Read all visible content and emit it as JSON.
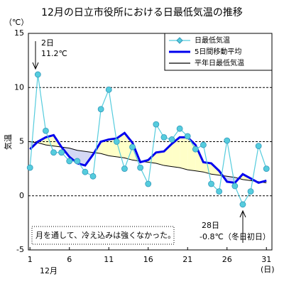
{
  "chart_data": {
    "type": "line",
    "title": "12月の日立市役所における日最低気温の推移",
    "y_unit": "（℃）",
    "y_label": "気温",
    "x_unit": "(日)",
    "x_month": "12月",
    "x": [
      1,
      2,
      3,
      4,
      5,
      6,
      7,
      8,
      9,
      10,
      11,
      12,
      13,
      14,
      15,
      16,
      17,
      18,
      19,
      20,
      21,
      22,
      23,
      24,
      25,
      26,
      27,
      28,
      29,
      30,
      31
    ],
    "xlim": [
      0.8,
      31.7
    ],
    "xticks": [
      1,
      6,
      11,
      16,
      21,
      26,
      31
    ],
    "ylim": [
      -5,
      15
    ],
    "yticks": [
      -5,
      0,
      5,
      10,
      15
    ],
    "grid": true,
    "legend": "upper right",
    "above_fill": "#ffffc8",
    "below_fill": "#d4d8f4",
    "series": [
      {
        "name": "日最低気温",
        "color": "#55ccdd",
        "values": [
          2.6,
          11.2,
          6.0,
          4.0,
          4.0,
          3.2,
          3.2,
          2.2,
          1.8,
          8.0,
          9.8,
          5.0,
          2.5,
          4.5,
          2.6,
          1.1,
          6.6,
          5.4,
          5.2,
          6.2,
          5.5,
          4.3,
          4.7,
          1.1,
          0.4,
          5.1,
          0.9,
          -0.8,
          0.4,
          4.6,
          2.5
        ]
      },
      {
        "name": "5日間移動平均",
        "color": "#0000ee",
        "values": [
          4.3,
          5.0,
          5.4,
          5.6,
          4.5,
          3.6,
          3.0,
          2.8,
          3.8,
          5.0,
          5.2,
          5.3,
          5.8,
          4.9,
          3.1,
          3.3,
          4.0,
          4.1,
          4.8,
          5.4,
          5.4,
          4.7,
          3.1,
          3.0,
          2.3,
          1.3,
          1.2,
          2.0,
          1.6,
          1.2,
          1.4
        ]
      },
      {
        "name": "平年日最低気温",
        "color": "#000000",
        "values": [
          5.0,
          4.9,
          4.7,
          4.6,
          4.5,
          4.4,
          4.2,
          4.1,
          4.0,
          3.9,
          3.7,
          3.6,
          3.5,
          3.3,
          3.2,
          3.1,
          3.0,
          2.8,
          2.7,
          2.6,
          2.4,
          2.3,
          2.2,
          2.0,
          1.9,
          1.8,
          1.7,
          1.5,
          1.4,
          1.3,
          1.2
        ]
      }
    ],
    "annotations": [
      "2日",
      "11.2℃",
      "28日",
      "-0.8℃（冬日初日）",
      "月を通して、冷え込みは強くなかった。"
    ]
  }
}
